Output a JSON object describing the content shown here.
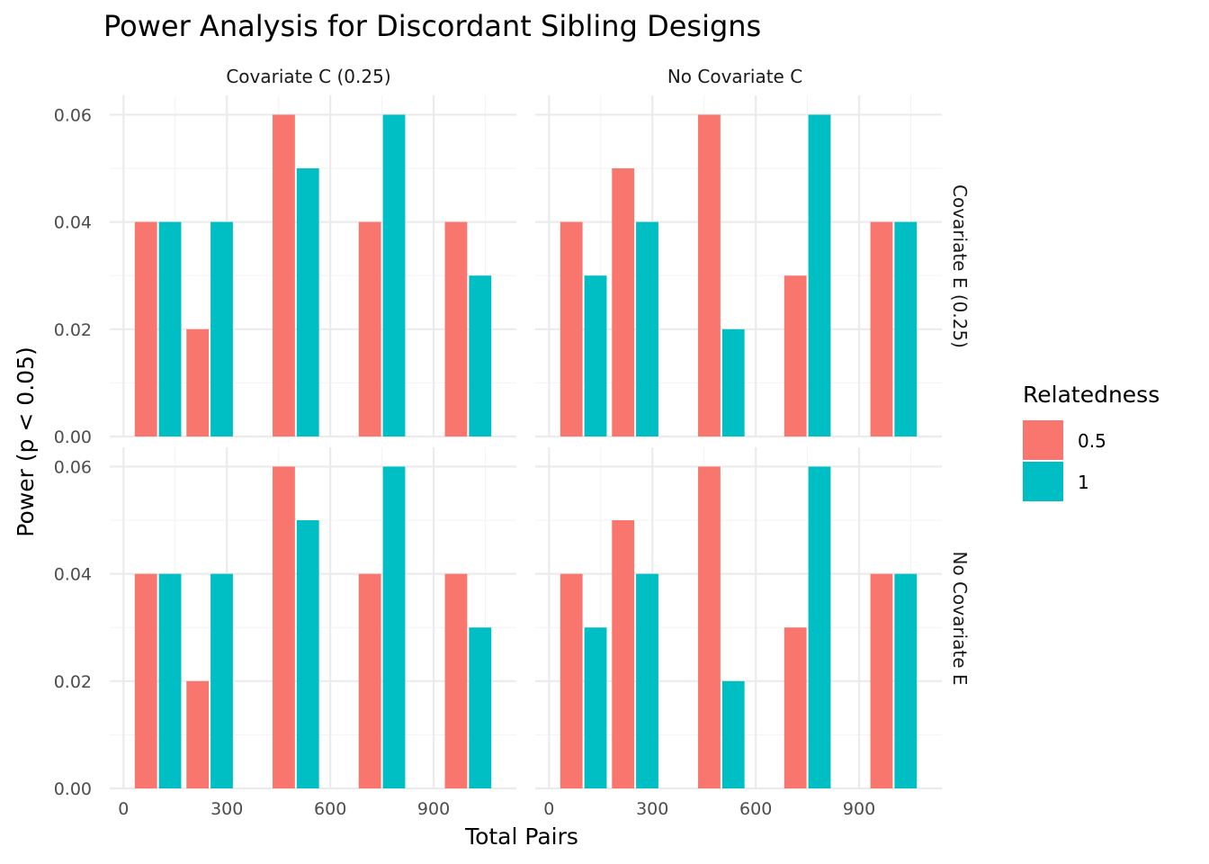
{
  "chart_data": {
    "type": "bar",
    "title": "Power Analysis for Discordant Sibling Designs",
    "xlabel": "Total Pairs",
    "ylabel": "Power (p < 0.05)",
    "x_ticks": [
      "0",
      "300",
      "600",
      "900"
    ],
    "y_ticks": [
      "0.00",
      "0.02",
      "0.04",
      "0.06"
    ],
    "xlim": [
      -40,
      1140
    ],
    "ylim": [
      0,
      0.0636
    ],
    "grid": true,
    "legend": {
      "title": "Relatedness",
      "position": "right",
      "entries": [
        {
          "label": "0.5",
          "color": "#F8766D"
        },
        {
          "label": "1",
          "color": "#00BFC4"
        }
      ]
    },
    "column_strips": [
      "Covariate C (0.25)",
      "No Covariate C"
    ],
    "row_strips": [
      "Covariate E (0.25)",
      "No Covariate E"
    ],
    "x": [
      100,
      250,
      500,
      750,
      1000
    ],
    "bar_width": 140,
    "panels": [
      {
        "row": 0,
        "col": 0,
        "series": [
          {
            "name": "0.5",
            "values": [
              0.04,
              0.02,
              0.06,
              0.04,
              0.04
            ]
          },
          {
            "name": "1",
            "values": [
              0.04,
              0.04,
              0.05,
              0.06,
              0.03
            ]
          }
        ]
      },
      {
        "row": 0,
        "col": 1,
        "series": [
          {
            "name": "0.5",
            "values": [
              0.04,
              0.05,
              0.06,
              0.03,
              0.04
            ]
          },
          {
            "name": "1",
            "values": [
              0.03,
              0.04,
              0.02,
              0.06,
              0.04
            ]
          }
        ]
      },
      {
        "row": 1,
        "col": 0,
        "series": [
          {
            "name": "0.5",
            "values": [
              0.04,
              0.02,
              0.06,
              0.04,
              0.04
            ]
          },
          {
            "name": "1",
            "values": [
              0.04,
              0.04,
              0.05,
              0.06,
              0.03
            ]
          }
        ]
      },
      {
        "row": 1,
        "col": 1,
        "series": [
          {
            "name": "0.5",
            "values": [
              0.04,
              0.05,
              0.06,
              0.03,
              0.04
            ]
          },
          {
            "name": "1",
            "values": [
              0.03,
              0.04,
              0.02,
              0.06,
              0.04
            ]
          }
        ]
      }
    ]
  }
}
